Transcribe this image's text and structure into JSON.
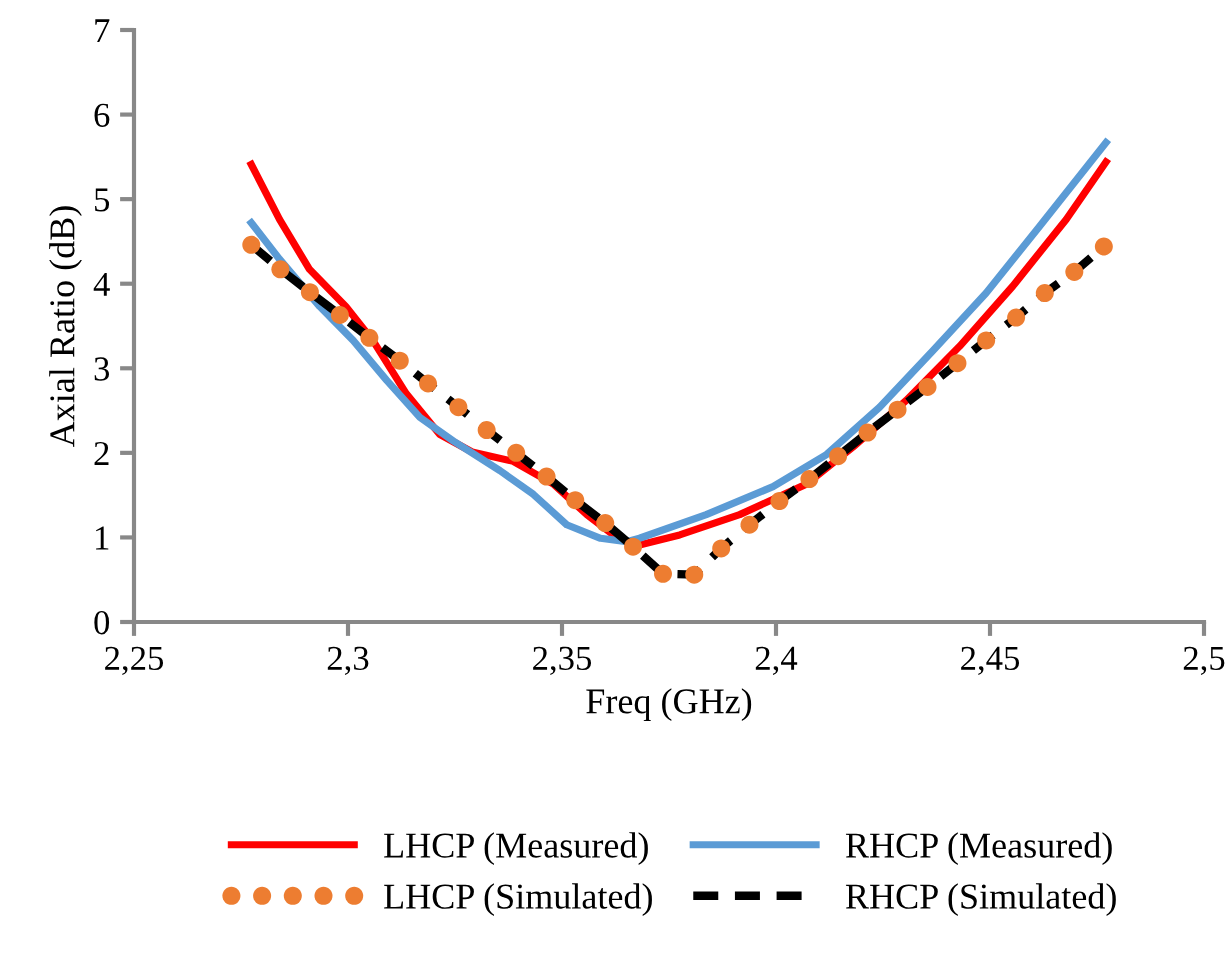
{
  "chart_data": {
    "type": "line",
    "xlabel": "Freq (GHz)",
    "ylabel": "Axial Ratio (dB)",
    "xlim": [
      2.25,
      2.5
    ],
    "xticks": [
      {
        "value": 2.25,
        "label": "2,25"
      },
      {
        "value": 2.3,
        "label": "2,3"
      },
      {
        "value": 2.35,
        "label": "2,35"
      },
      {
        "value": 2.4,
        "label": "2,4"
      },
      {
        "value": 2.45,
        "label": "2,45"
      },
      {
        "value": 2.5,
        "label": "2,5"
      }
    ],
    "ylim": [
      0,
      7
    ],
    "yticks": [
      0,
      1,
      2,
      3,
      4,
      5,
      6,
      7
    ],
    "grid": false,
    "legend": "bottom",
    "series": [
      {
        "name": "LHCP (Measured)",
        "color": "#ff0000",
        "line_style": "solid",
        "x": [
          2.2774,
          2.284,
          2.291,
          2.2995,
          2.3058,
          2.3136,
          2.3214,
          2.329,
          2.3386,
          2.348,
          2.3558,
          2.362,
          2.3666,
          2.3681,
          2.3775,
          2.3915,
          2.4071,
          2.418,
          2.4304,
          2.4429,
          2.4553,
          2.4678,
          2.4771
        ],
        "values": [
          5.41,
          4.76,
          4.17,
          3.73,
          3.33,
          2.7,
          2.22,
          2.01,
          1.9,
          1.63,
          1.27,
          1.03,
          0.91,
          0.91,
          1.03,
          1.27,
          1.63,
          2.07,
          2.62,
          3.26,
          3.97,
          4.76,
          5.44
        ]
      },
      {
        "name": "RHCP (Measured)",
        "color": "#5b9bd5",
        "line_style": "solid",
        "x": [
          2.2774,
          2.284,
          2.2934,
          2.3012,
          2.309,
          2.3168,
          2.3246,
          2.3355,
          2.3433,
          2.3511,
          2.359,
          2.3651,
          2.3681,
          2.3837,
          2.3993,
          2.4118,
          2.4242,
          2.4367,
          2.4491,
          2.4616,
          2.4771
        ],
        "values": [
          4.72,
          4.29,
          3.73,
          3.33,
          2.86,
          2.42,
          2.14,
          1.79,
          1.51,
          1.15,
          0.99,
          0.95,
          0.99,
          1.27,
          1.6,
          1.98,
          2.54,
          3.21,
          3.89,
          4.68,
          5.67
        ]
      },
      {
        "name": "LHCP (Simulated)",
        "type": "scatter",
        "marker": "circle",
        "color": "#ed7d31",
        "x": [
          2.2774,
          2.2842,
          2.2911,
          2.2981,
          2.305,
          2.3121,
          2.3187,
          2.3258,
          2.3324,
          2.3393,
          2.3464,
          2.3531,
          2.3601,
          2.3666,
          2.3736,
          2.3809,
          2.3872,
          2.3938,
          2.4008,
          2.4078,
          2.4145,
          2.4214,
          2.4284,
          2.4354,
          2.4424,
          2.4491,
          2.4561,
          2.4628,
          2.4697,
          2.4766
        ],
        "values": [
          4.46,
          4.17,
          3.9,
          3.63,
          3.36,
          3.09,
          2.82,
          2.54,
          2.27,
          2.0,
          1.72,
          1.44,
          1.17,
          0.89,
          0.57,
          0.56,
          0.87,
          1.15,
          1.43,
          1.69,
          1.96,
          2.24,
          2.51,
          2.78,
          3.06,
          3.33,
          3.6,
          3.89,
          4.14,
          4.44
        ]
      },
      {
        "name": "RHCP (Simulated)",
        "color": "#000000",
        "line_style": "dashed",
        "x": [
          2.2774,
          2.2842,
          2.2911,
          2.2981,
          2.305,
          2.3121,
          2.3187,
          2.3258,
          2.3324,
          2.3393,
          2.3464,
          2.3531,
          2.3601,
          2.3666,
          2.3736,
          2.3809,
          2.3872,
          2.3938,
          2.4008,
          2.4078,
          2.4145,
          2.4214,
          2.4284,
          2.4354,
          2.4424,
          2.4491,
          2.4561,
          2.4628,
          2.4697,
          2.4766
        ],
        "values": [
          4.46,
          4.17,
          3.9,
          3.63,
          3.36,
          3.09,
          2.82,
          2.54,
          2.27,
          2.0,
          1.72,
          1.44,
          1.17,
          0.89,
          0.57,
          0.56,
          0.87,
          1.15,
          1.43,
          1.69,
          1.96,
          2.24,
          2.51,
          2.78,
          3.06,
          3.33,
          3.6,
          3.89,
          4.14,
          4.44
        ]
      }
    ]
  }
}
